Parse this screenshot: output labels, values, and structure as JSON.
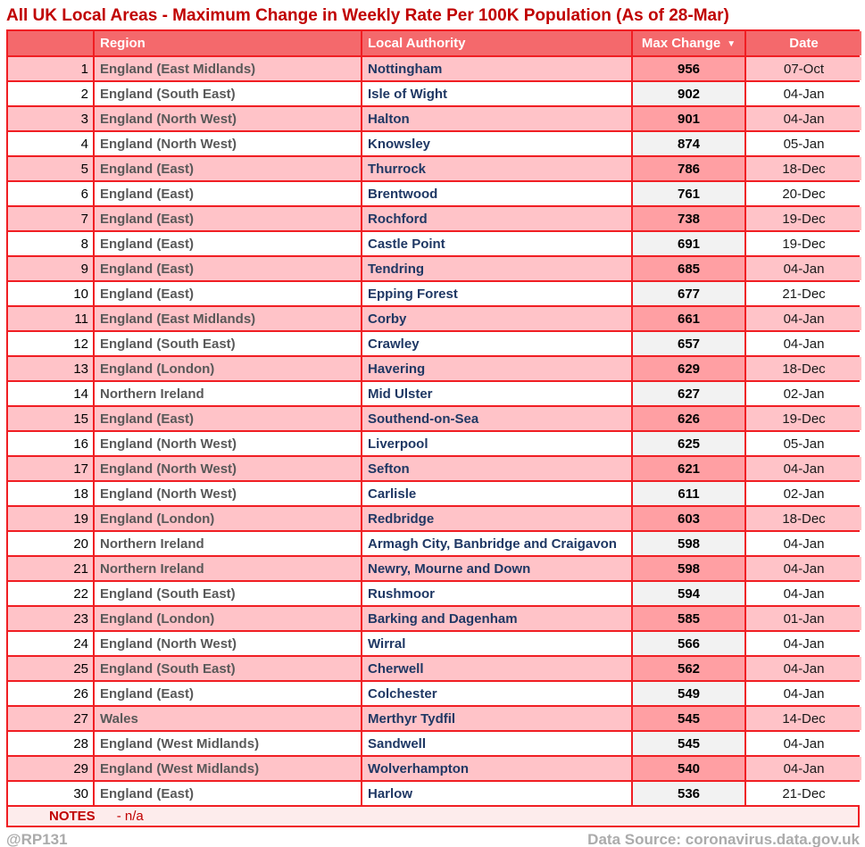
{
  "chart_data": {
    "type": "table",
    "title": "All UK Local Areas - Maximum Change in Weekly Rate Per 100K Population (As of 28-Mar)",
    "columns": {
      "rank_header": "",
      "region": "Region",
      "local_authority": "Local Authority",
      "max_change": "Max Change",
      "date": "Date"
    },
    "sort": {
      "column": "max_change",
      "direction": "desc",
      "icon": "▼"
    },
    "rows": [
      {
        "rank": 1,
        "region": "England (East Midlands)",
        "local_authority": "Nottingham",
        "max_change": 956,
        "date": "07-Oct"
      },
      {
        "rank": 2,
        "region": "England (South East)",
        "local_authority": "Isle of Wight",
        "max_change": 902,
        "date": "04-Jan"
      },
      {
        "rank": 3,
        "region": "England (North West)",
        "local_authority": "Halton",
        "max_change": 901,
        "date": "04-Jan"
      },
      {
        "rank": 4,
        "region": "England (North West)",
        "local_authority": "Knowsley",
        "max_change": 874,
        "date": "05-Jan"
      },
      {
        "rank": 5,
        "region": "England (East)",
        "local_authority": "Thurrock",
        "max_change": 786,
        "date": "18-Dec"
      },
      {
        "rank": 6,
        "region": "England (East)",
        "local_authority": "Brentwood",
        "max_change": 761,
        "date": "20-Dec"
      },
      {
        "rank": 7,
        "region": "England (East)",
        "local_authority": "Rochford",
        "max_change": 738,
        "date": "19-Dec"
      },
      {
        "rank": 8,
        "region": "England (East)",
        "local_authority": "Castle Point",
        "max_change": 691,
        "date": "19-Dec"
      },
      {
        "rank": 9,
        "region": "England (East)",
        "local_authority": "Tendring",
        "max_change": 685,
        "date": "04-Jan"
      },
      {
        "rank": 10,
        "region": "England (East)",
        "local_authority": "Epping Forest",
        "max_change": 677,
        "date": "21-Dec"
      },
      {
        "rank": 11,
        "region": "England (East Midlands)",
        "local_authority": "Corby",
        "max_change": 661,
        "date": "04-Jan"
      },
      {
        "rank": 12,
        "region": "England (South East)",
        "local_authority": "Crawley",
        "max_change": 657,
        "date": "04-Jan"
      },
      {
        "rank": 13,
        "region": "England (London)",
        "local_authority": "Havering",
        "max_change": 629,
        "date": "18-Dec"
      },
      {
        "rank": 14,
        "region": "Northern Ireland",
        "local_authority": "Mid Ulster",
        "max_change": 627,
        "date": "02-Jan"
      },
      {
        "rank": 15,
        "region": "England (East)",
        "local_authority": "Southend-on-Sea",
        "max_change": 626,
        "date": "19-Dec"
      },
      {
        "rank": 16,
        "region": "England (North West)",
        "local_authority": "Liverpool",
        "max_change": 625,
        "date": "05-Jan"
      },
      {
        "rank": 17,
        "region": "England (North West)",
        "local_authority": "Sefton",
        "max_change": 621,
        "date": "04-Jan"
      },
      {
        "rank": 18,
        "region": "England (North West)",
        "local_authority": "Carlisle",
        "max_change": 611,
        "date": "02-Jan"
      },
      {
        "rank": 19,
        "region": "England (London)",
        "local_authority": "Redbridge",
        "max_change": 603,
        "date": "18-Dec"
      },
      {
        "rank": 20,
        "region": "Northern Ireland",
        "local_authority": "Armagh City, Banbridge and Craigavon",
        "max_change": 598,
        "date": "04-Jan"
      },
      {
        "rank": 21,
        "region": "Northern Ireland",
        "local_authority": "Newry, Mourne and Down",
        "max_change": 598,
        "date": "04-Jan"
      },
      {
        "rank": 22,
        "region": "England (South East)",
        "local_authority": "Rushmoor",
        "max_change": 594,
        "date": "04-Jan"
      },
      {
        "rank": 23,
        "region": "England (London)",
        "local_authority": "Barking and Dagenham",
        "max_change": 585,
        "date": "01-Jan"
      },
      {
        "rank": 24,
        "region": "England (North West)",
        "local_authority": "Wirral",
        "max_change": 566,
        "date": "04-Jan"
      },
      {
        "rank": 25,
        "region": "England (South East)",
        "local_authority": "Cherwell",
        "max_change": 562,
        "date": "04-Jan"
      },
      {
        "rank": 26,
        "region": "England (East)",
        "local_authority": "Colchester",
        "max_change": 549,
        "date": "04-Jan"
      },
      {
        "rank": 27,
        "region": "Wales",
        "local_authority": "Merthyr Tydfil",
        "max_change": 545,
        "date": "14-Dec"
      },
      {
        "rank": 28,
        "region": "England (West Midlands)",
        "local_authority": "Sandwell",
        "max_change": 545,
        "date": "04-Jan"
      },
      {
        "rank": 29,
        "region": "England (West Midlands)",
        "local_authority": "Wolverhampton",
        "max_change": 540,
        "date": "04-Jan"
      },
      {
        "rank": 30,
        "region": "England (East)",
        "local_authority": "Harlow",
        "max_change": 536,
        "date": "21-Dec"
      }
    ]
  },
  "notes": {
    "label": "NOTES",
    "text": "- n/a"
  },
  "footer": {
    "handle": "@RP131",
    "source": "Data Source: coronavirus.data.gov.uk"
  },
  "colors": {
    "title_red": "#C00000",
    "border_red": "#F01E23",
    "header_bg": "#F4696C",
    "row_pink": "#FFC3C8",
    "max_change_pink": "#FF9FA3",
    "max_change_gray": "#F2F2F2",
    "region_gray": "#595959",
    "authority_navy": "#1F3864",
    "notes_bg": "#FDECEC",
    "footer_gray": "#ABABAB"
  }
}
